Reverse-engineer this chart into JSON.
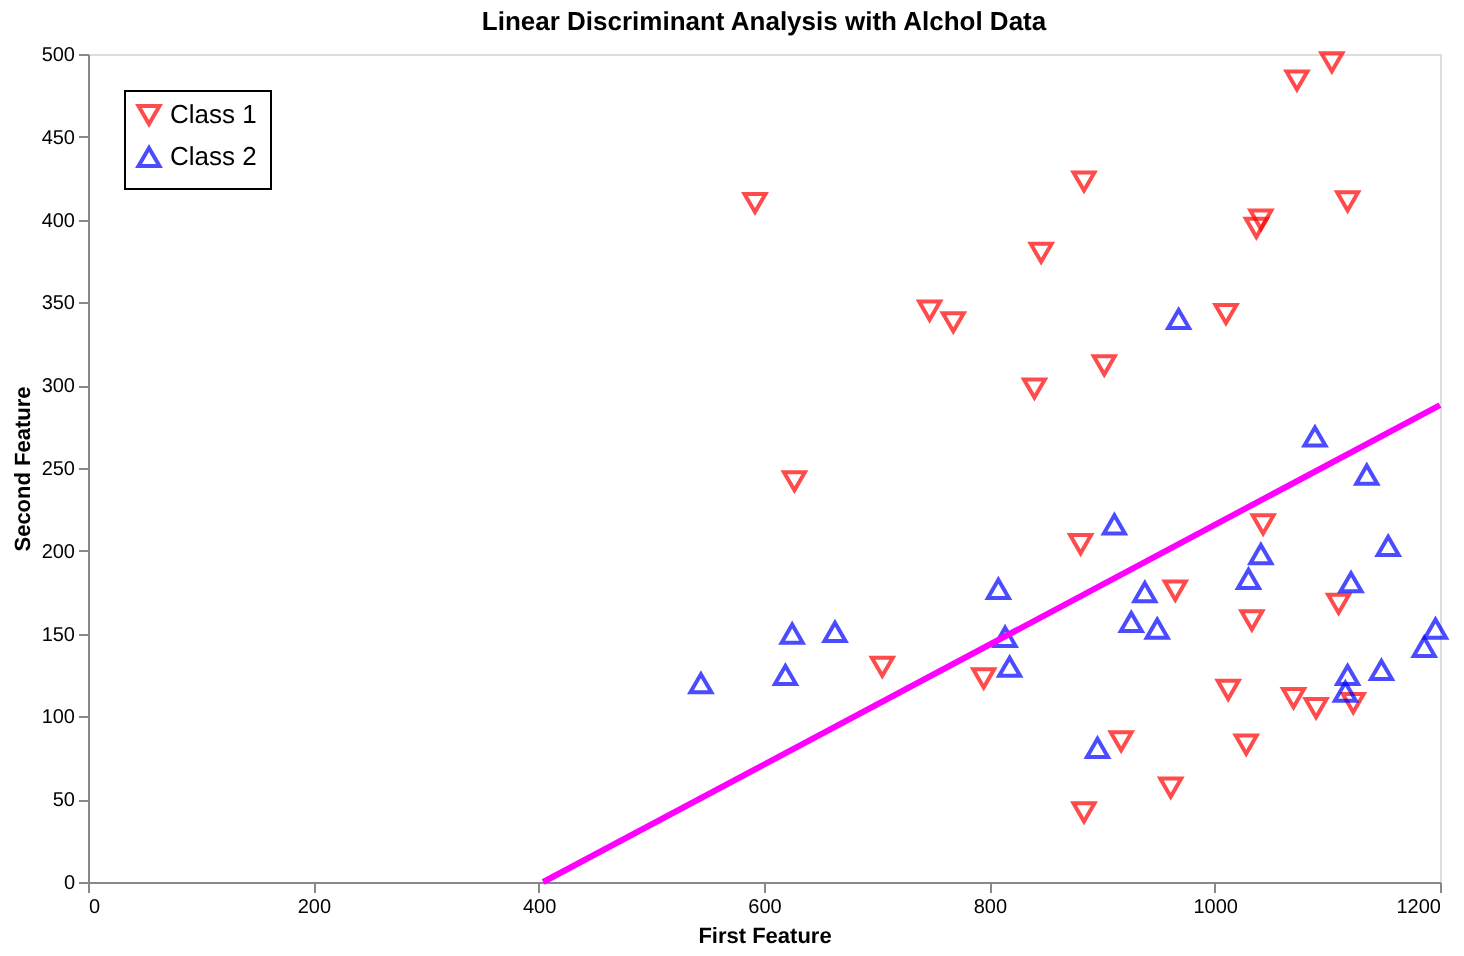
{
  "chart_data": {
    "type": "scatter",
    "title": "Linear Discriminant Analysis with Alchol Data",
    "xlabel": "First Feature",
    "ylabel": "Second Feature",
    "xlim": [
      0,
      1200
    ],
    "xticks": [
      0,
      200,
      400,
      600,
      800,
      1000,
      1200
    ],
    "ylim": [
      0,
      500
    ],
    "yticks": [
      0,
      50,
      100,
      150,
      200,
      250,
      300,
      350,
      400,
      450,
      500
    ],
    "grid": false,
    "legend": "top left",
    "series": [
      {
        "name": "Class 1",
        "color": "#ff0000",
        "marker": "triangle_down",
        "x": [
          1104,
          1073,
          592,
          884,
          1118,
          846,
          1037,
          1041,
          747,
          768,
          1010,
          902,
          840,
          627,
          881,
          1043,
          965,
          705,
          795,
          1110,
          1033,
          1012,
          1070,
          1090,
          1123,
          917,
          1028,
          961,
          884
        ],
        "values": [
          495,
          484,
          410,
          423,
          411,
          380,
          395,
          400,
          345,
          338,
          343,
          312,
          298,
          242,
          204,
          216,
          176,
          130,
          123,
          168,
          158,
          116,
          111,
          105,
          108,
          85,
          83,
          57,
          42
        ]
      },
      {
        "name": "Class 2",
        "color": "#0000ff",
        "marker": "triangle",
        "x": [
          968,
          1089,
          1135,
          911,
          1154,
          1041,
          1030,
          1121,
          808,
          938,
          926,
          949,
          814,
          625,
          663,
          818,
          619,
          544,
          1196,
          1186,
          1148,
          1118,
          1116,
          896
        ],
        "values": [
          340,
          269,
          246,
          216,
          203,
          198,
          183,
          181,
          177,
          175,
          157,
          153,
          148,
          150,
          151,
          130,
          125,
          120,
          153,
          142,
          128,
          125,
          115,
          81
        ]
      },
      {
        "type": "line",
        "color": "#ff00ff",
        "marker": "none",
        "x": [
          404,
          1200
        ],
        "values": [
          0,
          288
        ]
      }
    ]
  }
}
